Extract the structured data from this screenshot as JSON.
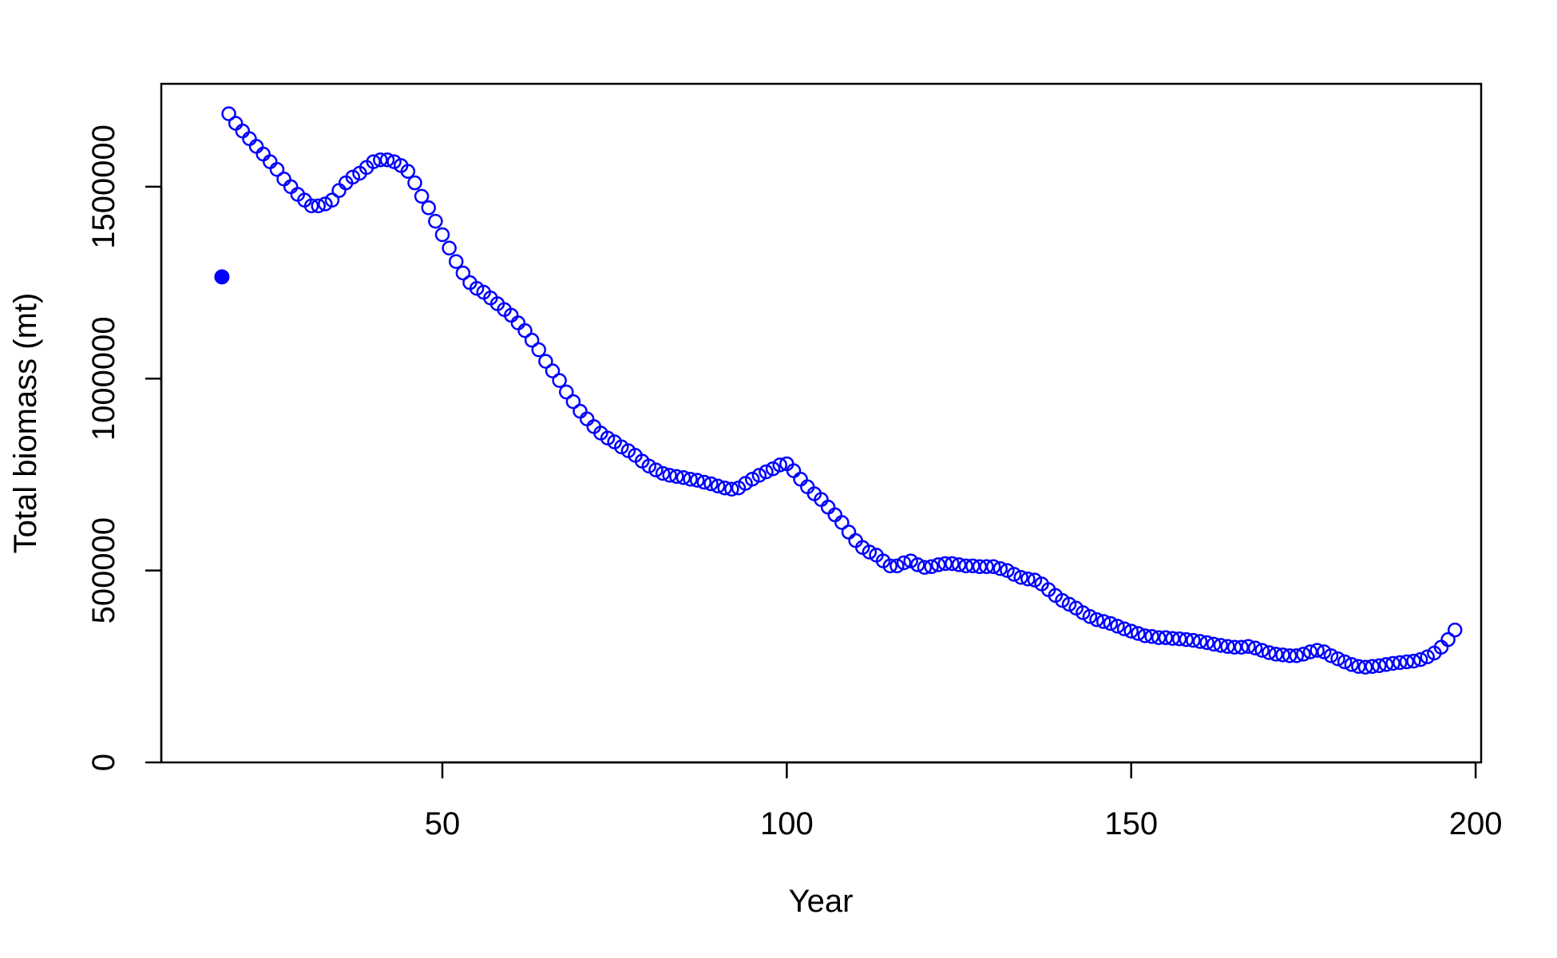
{
  "chart_data": {
    "type": "scatter",
    "title": "",
    "xlabel": "Year",
    "ylabel": "Total biomass (mt)",
    "xlim": [
      9.2,
      200.8
    ],
    "ylim": [
      0,
      1768000
    ],
    "xticks": [
      50,
      100,
      150,
      200
    ],
    "xtick_labels": [
      "50",
      "100",
      "150",
      "200"
    ],
    "yticks": [
      0,
      500000,
      1000000,
      1500000
    ],
    "ytick_labels": [
      "0",
      "500000",
      "1000000",
      "1500000"
    ],
    "grid": false,
    "legend": "none",
    "color": "#0000ff",
    "series": [
      {
        "marker": "filled-circle",
        "x": [
          18
        ],
        "y": [
          1265000
        ]
      },
      {
        "marker": "open-circle",
        "x": [
          19,
          20,
          21,
          22,
          23,
          24,
          25,
          26,
          27,
          28,
          29,
          30,
          31,
          32,
          33,
          34,
          35,
          36,
          37,
          38,
          39,
          40,
          41,
          42,
          43,
          44,
          45,
          46,
          47,
          48,
          49,
          50,
          51,
          52,
          53,
          54,
          55,
          56,
          57,
          58,
          59,
          60,
          61,
          62,
          63,
          64,
          65,
          66,
          67,
          68,
          69,
          70,
          71,
          72,
          73,
          74,
          75,
          76,
          77,
          78,
          79,
          80,
          81,
          82,
          83,
          84,
          85,
          86,
          87,
          88,
          89,
          90,
          91,
          92,
          93,
          94,
          95,
          96,
          97,
          98,
          99,
          100,
          101,
          102,
          103,
          104,
          105,
          106,
          107,
          108,
          109,
          110,
          111,
          112,
          113,
          114,
          115,
          116,
          117,
          118,
          119,
          120,
          121,
          122,
          123,
          124,
          125,
          126,
          127,
          128,
          129,
          130,
          131,
          132,
          133,
          134,
          135,
          136,
          137,
          138,
          139,
          140,
          141,
          142,
          143,
          144,
          145,
          146,
          147,
          148,
          149,
          150,
          151,
          152,
          153,
          154,
          155,
          155,
          156,
          157,
          158,
          159,
          160,
          161,
          162,
          163,
          164,
          165,
          166,
          167,
          168,
          169,
          170,
          171,
          172,
          173,
          174,
          175,
          176,
          177,
          178,
          179,
          180,
          181,
          182,
          183,
          184,
          185,
          186,
          187,
          188,
          189,
          190,
          191,
          192,
          193,
          194,
          195,
          196,
          197
        ],
        "y": [
          1690000,
          1665000,
          1645000,
          1625000,
          1605000,
          1585000,
          1565000,
          1545000,
          1520000,
          1500000,
          1480000,
          1465000,
          1450000,
          1450000,
          1455000,
          1465000,
          1490000,
          1510000,
          1525000,
          1535000,
          1550000,
          1565000,
          1570000,
          1570000,
          1565000,
          1555000,
          1540000,
          1510000,
          1475000,
          1445000,
          1410000,
          1375000,
          1340000,
          1305000,
          1275000,
          1250000,
          1235000,
          1225000,
          1210000,
          1195000,
          1180000,
          1165000,
          1145000,
          1125000,
          1100000,
          1075000,
          1045000,
          1020000,
          995000,
          965000,
          940000,
          915000,
          895000,
          875000,
          858000,
          845000,
          835000,
          822000,
          812000,
          800000,
          785000,
          772000,
          762000,
          753000,
          748000,
          745000,
          742000,
          738000,
          735000,
          730000,
          726000,
          720000,
          715000,
          712000,
          715000,
          727000,
          738000,
          748000,
          757000,
          765000,
          775000,
          778000,
          760000,
          738000,
          718000,
          700000,
          685000,
          665000,
          645000,
          625000,
          600000,
          578000,
          560000,
          548000,
          540000,
          525000,
          512000,
          512000,
          520000,
          525000,
          515000,
          508000,
          510000,
          515000,
          518000,
          518000,
          515000,
          512000,
          512000,
          510000,
          510000,
          510000,
          505000,
          500000,
          490000,
          482000,
          478000,
          475000,
          465000,
          450000,
          435000,
          422000,
          412000,
          402000,
          390000,
          380000,
          372000,
          367000,
          362000,
          355000,
          348000,
          342000,
          336000,
          330000,
          328000,
          325000,
          325000,
          325000,
          323000,
          322000,
          320000,
          318000,
          315000,
          312000,
          308000,
          305000,
          302000,
          300000,
          300000,
          302000,
          298000,
          292000,
          286000,
          282000,
          280000,
          278000,
          278000,
          282000,
          288000,
          292000,
          288000,
          278000,
          270000,
          262000,
          255000,
          250000,
          248000,
          250000,
          252000,
          255000,
          258000,
          260000,
          262000,
          264000,
          268000,
          275000,
          285000,
          300000,
          320000,
          345000
        ]
      }
    ]
  }
}
